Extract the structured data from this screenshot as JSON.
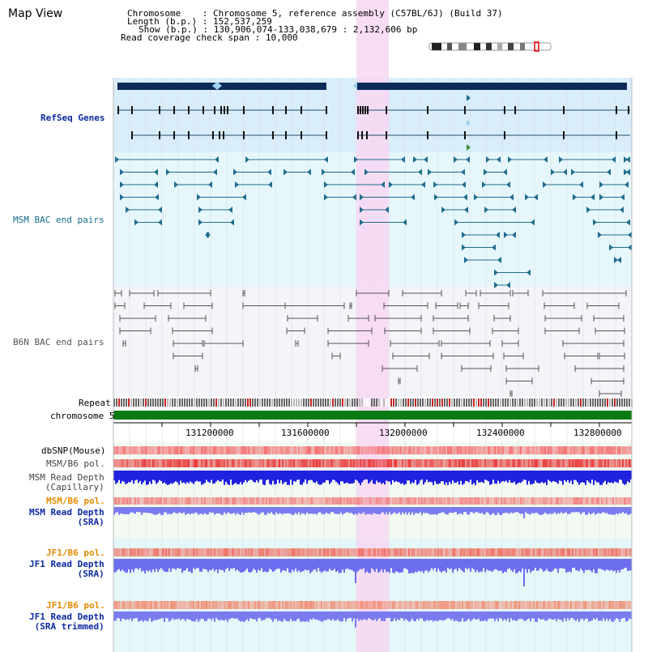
{
  "app": {
    "title": "Map View"
  },
  "info": {
    "chromosome_label": "Chromosome",
    "chromosome_value": "Chromosome 5, reference assembly (C57BL/6J) (Build 37)",
    "length_label": "Length (b.p.)",
    "length_value": "152,537,259",
    "show_label": "Show (b.p.)",
    "show_value": "130,906,074-133,038,679 : 2,132,606 bp",
    "coverage_label": "Read coverage check span",
    "coverage_value": "10,000"
  },
  "tracks": {
    "refseq": "RefSeq Genes",
    "msm_bac": "MSM BAC end pairs",
    "b6n_bac": "B6N BAC end pairs",
    "repeat": "Repeat",
    "chromosome": "chromosome 5",
    "dbsnp": "dbSNP(Mouse)",
    "msm_b6_pol": "MSM/B6 pol.",
    "msm_depth_cap_1": "MSM Read Depth",
    "msm_depth_cap_2": "(Capillary)",
    "msm_b6_pol2": "MSM/B6 pol.",
    "msm_depth_sra_1": "MSM Read Depth",
    "msm_depth_sra_2": "(SRA)",
    "jf1_b6_pol": "JF1/B6 pol.",
    "jf1_depth_1": "JF1 Read Depth",
    "jf1_depth_2": "(SRA)",
    "jf1_b6_pol2": "JF1/B6 pol.",
    "jf1_trim_1": "JF1 Read Depth",
    "jf1_trim_2": "(SRA trimmed)"
  },
  "axis": {
    "ticks": [
      "131200000",
      "131600000",
      "132000000",
      "132400000",
      "132800000"
    ]
  },
  "colors": {
    "refseq_bg": "#d9eefa",
    "msm_bg": "#e6f7fb",
    "b6n_bg": "#f4f4f9",
    "highlight": "#f7d7f2",
    "navy": "#0b2b5a",
    "teal": "#1f6d8e",
    "chrom_green": "#0a7a12",
    "snp_red": "#e23a2a",
    "depth_blue": "#2121e0",
    "depth_light": "#7b7bef",
    "label_blue": "#0c2a9f",
    "label_teal": "#146b8a",
    "label_orange": "#e48a00"
  }
}
